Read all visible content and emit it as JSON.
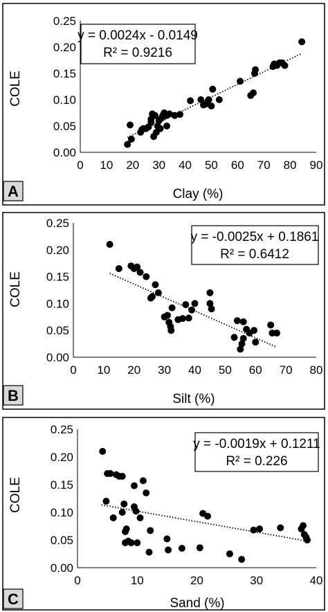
{
  "chart_data": [
    {
      "type": "scatter",
      "panel_label": "A",
      "xlabel": "Clay (%)",
      "ylabel": "COLE",
      "xlim": [
        0,
        90
      ],
      "ylim": [
        0,
        0.25
      ],
      "xticks": [
        "0",
        "10",
        "20",
        "30",
        "40",
        "50",
        "60",
        "70",
        "80",
        "90"
      ],
      "yticks": [
        "0.00",
        "0.05",
        "0.10",
        "0.15",
        "0.20",
        "0.25"
      ],
      "equation": "y = 0.0024x - 0.0149",
      "r2": "R² = 0.9216",
      "trendline": {
        "x": [
          18,
          84
        ],
        "y": [
          0.0283,
          0.1867
        ]
      },
      "points": [
        [
          18,
          0.015
        ],
        [
          19,
          0.052
        ],
        [
          19.5,
          0.025
        ],
        [
          23,
          0.038
        ],
        [
          23.5,
          0.043
        ],
        [
          24,
          0.045
        ],
        [
          25,
          0.045
        ],
        [
          26,
          0.048
        ],
        [
          27,
          0.063
        ],
        [
          27,
          0.057
        ],
        [
          27.5,
          0.073
        ],
        [
          28,
          0.03
        ],
        [
          28.5,
          0.07
        ],
        [
          29,
          0.038
        ],
        [
          29.5,
          0.05
        ],
        [
          30,
          0.06
        ],
        [
          30.5,
          0.045
        ],
        [
          31,
          0.065
        ],
        [
          31.5,
          0.07
        ],
        [
          32,
          0.075
        ],
        [
          33,
          0.07
        ],
        [
          33,
          0.05
        ],
        [
          34,
          0.073
        ],
        [
          36,
          0.07
        ],
        [
          38,
          0.072
        ],
        [
          42,
          0.098
        ],
        [
          46,
          0.1
        ],
        [
          47,
          0.09
        ],
        [
          48,
          0.092
        ],
        [
          49,
          0.1
        ],
        [
          50,
          0.088
        ],
        [
          50.5,
          0.12
        ],
        [
          53,
          0.1
        ],
        [
          61,
          0.135
        ],
        [
          65,
          0.108
        ],
        [
          66,
          0.113
        ],
        [
          66.5,
          0.15
        ],
        [
          66.8,
          0.157
        ],
        [
          73.5,
          0.163
        ],
        [
          74,
          0.168
        ],
        [
          75,
          0.165
        ],
        [
          76,
          0.17
        ],
        [
          77,
          0.17
        ],
        [
          78,
          0.165
        ],
        [
          84.5,
          0.21
        ]
      ]
    },
    {
      "type": "scatter",
      "panel_label": "B",
      "xlabel": "Silt (%)",
      "ylabel": "COLE",
      "xlim": [
        0,
        80
      ],
      "ylim": [
        0,
        0.25
      ],
      "xticks": [
        "0",
        "10",
        "20",
        "30",
        "40",
        "50",
        "60",
        "70",
        "80"
      ],
      "yticks": [
        "0.00",
        "0.05",
        "0.10",
        "0.15",
        "0.20",
        "0.25"
      ],
      "equation": "y = -0.0025x + 0.1861",
      "r2": "R² = 0.6412",
      "trendline": {
        "x": [
          12,
          67
        ],
        "y": [
          0.1561,
          0.0186
        ]
      },
      "points": [
        [
          12,
          0.21
        ],
        [
          15,
          0.165
        ],
        [
          19,
          0.17
        ],
        [
          20,
          0.165
        ],
        [
          21,
          0.168
        ],
        [
          22,
          0.158
        ],
        [
          24,
          0.15
        ],
        [
          25.5,
          0.11
        ],
        [
          26,
          0.113
        ],
        [
          27,
          0.135
        ],
        [
          28,
          0.12
        ],
        [
          30,
          0.075
        ],
        [
          31,
          0.078
        ],
        [
          31.5,
          0.065
        ],
        [
          32,
          0.057
        ],
        [
          32.2,
          0.05
        ],
        [
          32.5,
          0.092
        ],
        [
          34.5,
          0.07
        ],
        [
          36,
          0.072
        ],
        [
          37,
          0.098
        ],
        [
          38,
          0.073
        ],
        [
          39,
          0.088
        ],
        [
          40,
          0.1
        ],
        [
          45,
          0.12
        ],
        [
          45,
          0.1
        ],
        [
          45.5,
          0.09
        ],
        [
          53,
          0.037
        ],
        [
          54,
          0.068
        ],
        [
          55,
          0.015
        ],
        [
          55.5,
          0.025
        ],
        [
          56,
          0.035
        ],
        [
          56,
          0.066
        ],
        [
          57,
          0.052
        ],
        [
          58,
          0.045
        ],
        [
          59.5,
          0.05
        ],
        [
          60,
          0.028
        ],
        [
          65,
          0.06
        ],
        [
          65.5,
          0.045
        ],
        [
          67,
          0.045
        ]
      ]
    },
    {
      "type": "scatter",
      "panel_label": "C",
      "xlabel": "Sand (%)",
      "ylabel": "COLE",
      "xlim": [
        0,
        40
      ],
      "ylim": [
        0,
        0.25
      ],
      "xticks": [
        "0",
        "10",
        "20",
        "30",
        "40"
      ],
      "yticks": [
        "0.00",
        "0.05",
        "0.10",
        "0.15",
        "0.20",
        "0.25"
      ],
      "equation": "y = -0.0019x + 0.1211",
      "r2": "R² = 0.226",
      "trendline": {
        "x": [
          4,
          38.5
        ],
        "y": [
          0.1135,
          0.048
        ]
      },
      "points": [
        [
          4.2,
          0.21
        ],
        [
          4.8,
          0.12
        ],
        [
          5,
          0.17
        ],
        [
          5.5,
          0.17
        ],
        [
          6,
          0.09
        ],
        [
          6.5,
          0.168
        ],
        [
          7,
          0.165
        ],
        [
          7.5,
          0.165
        ],
        [
          7.5,
          0.1
        ],
        [
          7.8,
          0.115
        ],
        [
          8,
          0.065
        ],
        [
          8,
          0.045
        ],
        [
          8.2,
          0.07
        ],
        [
          8.5,
          0.048
        ],
        [
          9,
          0.045
        ],
        [
          9.5,
          0.11
        ],
        [
          9.5,
          0.148
        ],
        [
          9.8,
          0.102
        ],
        [
          10,
          0.045
        ],
        [
          10.5,
          0.09
        ],
        [
          11,
          0.157
        ],
        [
          11.5,
          0.135
        ],
        [
          12,
          0.028
        ],
        [
          12.2,
          0.067
        ],
        [
          15,
          0.052
        ],
        [
          15.2,
          0.032
        ],
        [
          17.5,
          0.035
        ],
        [
          20.5,
          0.036
        ],
        [
          21,
          0.098
        ],
        [
          21.8,
          0.093
        ],
        [
          25.5,
          0.025
        ],
        [
          27.5,
          0.015
        ],
        [
          29.5,
          0.068
        ],
        [
          30.5,
          0.07
        ],
        [
          34,
          0.072
        ],
        [
          37.5,
          0.07
        ],
        [
          37.8,
          0.076
        ],
        [
          38,
          0.06
        ],
        [
          38.3,
          0.055
        ],
        [
          38.5,
          0.05
        ]
      ]
    }
  ]
}
